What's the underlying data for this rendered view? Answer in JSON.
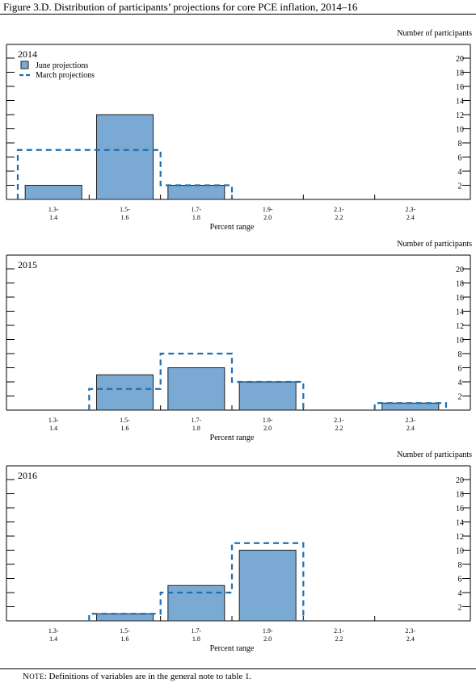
{
  "figure": {
    "title": "Figure 3.D. Distribution of participants’ projections for core PCE inflation, 2014–16",
    "note_prefix": "Note",
    "note_rest": ": Definitions of variables are in the general note to table 1."
  },
  "colors": {
    "june_fill": "#7aaad4",
    "june_stroke": "#1f1f1f",
    "march_line": "#1f6fae",
    "axis": "#000000"
  },
  "chart_data": [
    {
      "type": "bar",
      "title": "2014",
      "categories": [
        [
          "1.3-",
          "1.4"
        ],
        [
          "1.5-",
          "1.6"
        ],
        [
          "1.7-",
          "1.8"
        ],
        [
          "1.9-",
          "2.0"
        ],
        [
          "2.1-",
          "2.2"
        ],
        [
          "2.3-",
          "2.4"
        ]
      ],
      "xlabel": "Percent range",
      "ylabel": "Number of participants",
      "ylim": [
        0,
        20
      ],
      "yticks": [
        2,
        4,
        6,
        8,
        10,
        12,
        14,
        16,
        18,
        20
      ],
      "series": [
        {
          "name": "June projections",
          "style": "bar",
          "values": [
            2,
            12,
            2,
            0,
            0,
            0
          ]
        },
        {
          "name": "March projections",
          "style": "dashed-step",
          "values": [
            7,
            7,
            2,
            0,
            0,
            0
          ]
        }
      ],
      "legend": "top-left"
    },
    {
      "type": "bar",
      "title": "2015",
      "categories": [
        [
          "1.3-",
          "1.4"
        ],
        [
          "1.5-",
          "1.6"
        ],
        [
          "1.7-",
          "1.8"
        ],
        [
          "1.9-",
          "2.0"
        ],
        [
          "2.1-",
          "2.2"
        ],
        [
          "2.3-",
          "2.4"
        ]
      ],
      "xlabel": "Percent range",
      "ylabel": "Number of participants",
      "ylim": [
        0,
        20
      ],
      "yticks": [
        2,
        4,
        6,
        8,
        10,
        12,
        14,
        16,
        18,
        20
      ],
      "series": [
        {
          "name": "June projections",
          "style": "bar",
          "values": [
            0,
            5,
            6,
            4,
            0,
            1
          ]
        },
        {
          "name": "March projections",
          "style": "dashed-step",
          "values": [
            0,
            3,
            8,
            4,
            0,
            1
          ]
        }
      ]
    },
    {
      "type": "bar",
      "title": "2016",
      "categories": [
        [
          "1.3-",
          "1.4"
        ],
        [
          "1.5-",
          "1.6"
        ],
        [
          "1.7-",
          "1.8"
        ],
        [
          "1.9-",
          "2.0"
        ],
        [
          "2.1-",
          "2.2"
        ],
        [
          "2.3-",
          "2.4"
        ]
      ],
      "xlabel": "Percent range",
      "ylabel": "Number of participants",
      "ylim": [
        0,
        20
      ],
      "yticks": [
        2,
        4,
        6,
        8,
        10,
        12,
        14,
        16,
        18,
        20
      ],
      "series": [
        {
          "name": "June projections",
          "style": "bar",
          "values": [
            0,
            1,
            5,
            10,
            0,
            0
          ]
        },
        {
          "name": "March projections",
          "style": "dashed-step",
          "values": [
            0,
            1,
            4,
            11,
            0,
            0
          ]
        }
      ]
    }
  ]
}
